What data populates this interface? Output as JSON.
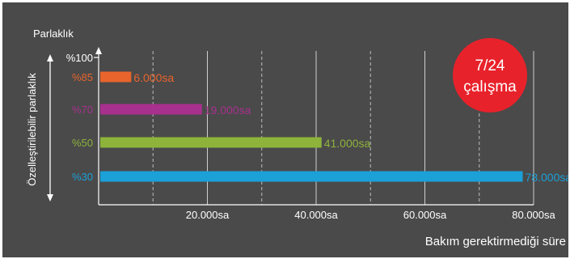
{
  "chart_data": {
    "type": "bar",
    "orientation": "horizontal",
    "y_title": "Parlaklık",
    "x_title": "Bakım gerektirmediği süre",
    "side_label": "Özelleştirilebilir parlaklık",
    "top_level_label": "%100",
    "categories": [
      "%85",
      "%70",
      "%50",
      "%30"
    ],
    "values": [
      6000,
      19000,
      41000,
      78000
    ],
    "value_labels": [
      "6.000sa",
      "19.000sa",
      "41.000sa",
      "78.000sa"
    ],
    "colors": [
      "#e8642c",
      "#a8308e",
      "#8eb33b",
      "#1ba0d8"
    ],
    "x_ticks": [
      {
        "value": 20000,
        "label": "20.000sa"
      },
      {
        "value": 40000,
        "label": "40.000sa"
      },
      {
        "value": 60000,
        "label": "60.000sa"
      },
      {
        "value": 80000,
        "label": "80.000sa"
      }
    ],
    "x_dashed_ticks": [
      10000,
      30000,
      50000,
      70000
    ],
    "xlim": [
      0,
      80000
    ],
    "grid": true,
    "background_color": "#4a4a4a",
    "text_color": "#ffffff"
  },
  "badge": {
    "line1": "7/24",
    "line2": "çalışma",
    "color": "#e8222b"
  }
}
